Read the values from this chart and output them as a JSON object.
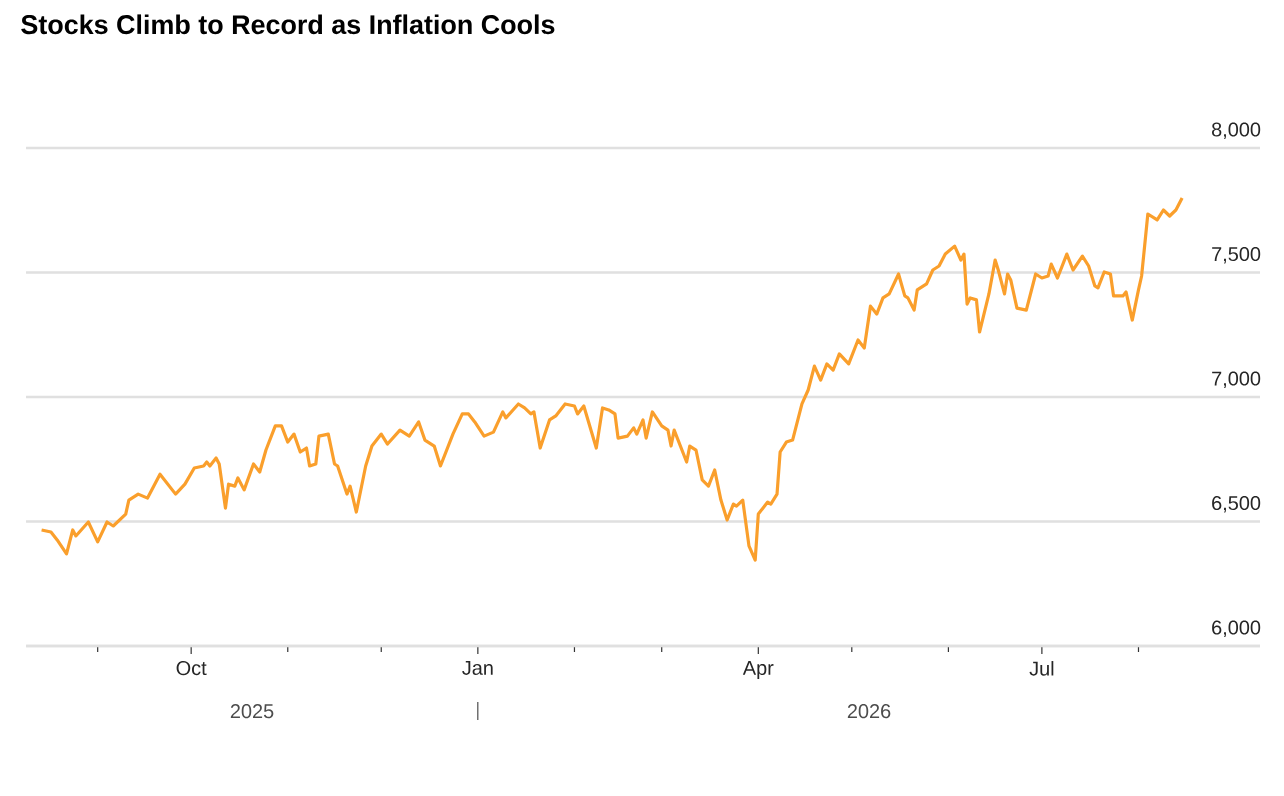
{
  "chart_data": {
    "type": "line",
    "title": "Stocks Climb to Record as Inflation Cools",
    "x": [
      "2025-08-14",
      "2025-08-17",
      "2025-08-19",
      "2025-08-22",
      "2025-08-24",
      "2025-08-25",
      "2025-08-29",
      "2025-09-01",
      "2025-09-04",
      "2025-09-06",
      "2025-09-10",
      "2025-09-11",
      "2025-09-14",
      "2025-09-17",
      "2025-09-21",
      "2025-09-26",
      "2025-09-29",
      "2025-10-02",
      "2025-10-05",
      "2025-10-06",
      "2025-10-07",
      "2025-10-09",
      "2025-10-10",
      "2025-10-12",
      "2025-10-13",
      "2025-10-15",
      "2025-10-16",
      "2025-10-18",
      "2025-10-21",
      "2025-10-23",
      "2025-10-25",
      "2025-10-28",
      "2025-10-30",
      "2025-11-01",
      "2025-11-03",
      "2025-11-05",
      "2025-11-07",
      "2025-11-08",
      "2025-11-10",
      "2025-11-11",
      "2025-11-14",
      "2025-11-16",
      "2025-11-17",
      "2025-11-20",
      "2025-11-21",
      "2025-11-23",
      "2025-11-26",
      "2025-11-28",
      "2025-12-01",
      "2025-12-03",
      "2025-12-07",
      "2025-12-10",
      "2025-12-13",
      "2025-12-15",
      "2025-12-18",
      "2025-12-20",
      "2025-12-24",
      "2025-12-27",
      "2025-12-29",
      "2025-12-31",
      "2026-01-03",
      "2026-01-06",
      "2026-01-09",
      "2026-01-10",
      "2026-01-14",
      "2026-01-16",
      "2026-01-18",
      "2026-01-19",
      "2026-01-21",
      "2026-01-24",
      "2026-01-26",
      "2026-01-29",
      "2026-02-01",
      "2026-02-02",
      "2026-02-04",
      "2026-02-08",
      "2026-02-10",
      "2026-02-12",
      "2026-02-14",
      "2026-02-15",
      "2026-02-18",
      "2026-02-20",
      "2026-02-21",
      "2026-02-23",
      "2026-02-24",
      "2026-02-26",
      "2026-03-01",
      "2026-03-03",
      "2026-03-04",
      "2026-03-05",
      "2026-03-09",
      "2026-03-10",
      "2026-03-12",
      "2026-03-14",
      "2026-03-16",
      "2026-03-18",
      "2026-03-20",
      "2026-03-22",
      "2026-03-24",
      "2026-03-25",
      "2026-03-27",
      "2026-03-29",
      "2026-03-31",
      "2026-04-01",
      "2026-04-04",
      "2026-04-05",
      "2026-04-07",
      "2026-04-08",
      "2026-04-10",
      "2026-04-12",
      "2026-04-15",
      "2026-04-17",
      "2026-04-19",
      "2026-04-21",
      "2026-04-23",
      "2026-04-25",
      "2026-04-27",
      "2026-04-30",
      "2026-05-03",
      "2026-05-05",
      "2026-05-07",
      "2026-05-09",
      "2026-05-11",
      "2026-05-13",
      "2026-05-16",
      "2026-05-18",
      "2026-05-19",
      "2026-05-21",
      "2026-05-22",
      "2026-05-25",
      "2026-05-27",
      "2026-05-29",
      "2026-05-31",
      "2026-06-03",
      "2026-06-05",
      "2026-06-06",
      "2026-06-07",
      "2026-06-08",
      "2026-06-10",
      "2026-06-11",
      "2026-06-14",
      "2026-06-16",
      "2026-06-17",
      "2026-06-19",
      "2026-06-20",
      "2026-06-21",
      "2026-06-23",
      "2026-06-26",
      "2026-06-29",
      "2026-07-01",
      "2026-07-03",
      "2026-07-04",
      "2026-07-06",
      "2026-07-09",
      "2026-07-11",
      "2026-07-14",
      "2026-07-16",
      "2026-07-18",
      "2026-07-19",
      "2026-07-21",
      "2026-07-23",
      "2026-07-24",
      "2026-07-27",
      "2026-07-28",
      "2026-07-30",
      "2026-08-01",
      "2026-08-02",
      "2026-08-04",
      "2026-08-07",
      "2026-08-09",
      "2026-08-11",
      "2026-08-13",
      "2026-08-15"
    ],
    "series": [
      {
        "color": "#fa9f2c",
        "values": [
          6466,
          6458,
          6426,
          6370,
          6466,
          6442,
          6498,
          6418,
          6498,
          6482,
          6530,
          6586,
          6610,
          6594,
          6690,
          6610,
          6650,
          6715,
          6723,
          6739,
          6723,
          6755,
          6731,
          6554,
          6650,
          6642,
          6675,
          6627,
          6731,
          6699,
          6787,
          6884,
          6884,
          6819,
          6851,
          6779,
          6795,
          6723,
          6731,
          6843,
          6851,
          6731,
          6723,
          6610,
          6642,
          6538,
          6723,
          6803,
          6851,
          6811,
          6867,
          6843,
          6900,
          6827,
          6803,
          6723,
          6851,
          6932,
          6932,
          6900,
          6843,
          6859,
          6940,
          6916,
          6972,
          6956,
          6932,
          6940,
          6795,
          6908,
          6924,
          6972,
          6964,
          6932,
          6964,
          6795,
          6956,
          6948,
          6932,
          6835,
          6843,
          6876,
          6851,
          6908,
          6835,
          6940,
          6884,
          6867,
          6803,
          6867,
          6739,
          6803,
          6787,
          6667,
          6642,
          6707,
          6586,
          6506,
          6570,
          6562,
          6586,
          6402,
          6345,
          6530,
          6578,
          6570,
          6610,
          6779,
          6819,
          6827,
          6972,
          7028,
          7124,
          7068,
          7133,
          7108,
          7173,
          7133,
          7229,
          7197,
          7365,
          7333,
          7398,
          7414,
          7494,
          7406,
          7398,
          7349,
          7430,
          7454,
          7510,
          7526,
          7574,
          7606,
          7550,
          7574,
          7373,
          7398,
          7390,
          7261,
          7414,
          7550,
          7510,
          7414,
          7494,
          7470,
          7357,
          7349,
          7494,
          7478,
          7486,
          7534,
          7478,
          7574,
          7510,
          7566,
          7526,
          7446,
          7438,
          7502,
          7494,
          7406,
          7406,
          7422,
          7309,
          7430,
          7486,
          7735,
          7711,
          7751,
          7727,
          7751,
          7799
        ]
      }
    ],
    "xlim": [
      "2025-08-09",
      "2026-09-09"
    ],
    "xticks": [
      {
        "value": "2025-09-01",
        "label": null
      },
      {
        "value": "2025-10-01",
        "label": "Oct"
      },
      {
        "value": "2025-11-01",
        "label": null
      },
      {
        "value": "2025-12-01",
        "label": null
      },
      {
        "value": "2026-01-01",
        "label": "Jan"
      },
      {
        "value": "2026-02-01",
        "label": null
      },
      {
        "value": "2026-03-01",
        "label": null
      },
      {
        "value": "2026-04-01",
        "label": "Apr"
      },
      {
        "value": "2026-05-01",
        "label": null
      },
      {
        "value": "2026-06-01",
        "label": null
      },
      {
        "value": "2026-07-01",
        "label": "Jul"
      },
      {
        "value": "2026-08-01",
        "label": null
      }
    ],
    "ylim": [
      6000,
      8000
    ],
    "yticks": [
      {
        "value": 6000,
        "label": "6,000"
      },
      {
        "value": 6500,
        "label": "6,500"
      },
      {
        "value": 7000,
        "label": "7,000"
      },
      {
        "value": 7500,
        "label": "7,500"
      },
      {
        "value": 8000,
        "label": "8,000"
      }
    ],
    "grid": "y",
    "annotations": [
      "2025",
      "2026"
    ]
  }
}
